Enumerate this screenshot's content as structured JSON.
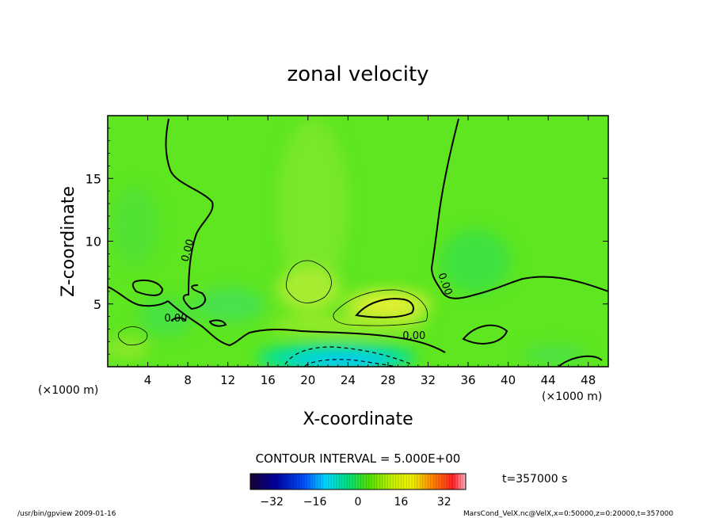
{
  "chart_data": {
    "type": "heatmap",
    "title": "zonal velocity",
    "xlabel": "X-coordinate",
    "ylabel": "Z-coordinate",
    "x_unit": "(×1000 m)",
    "x_ticks": [
      4,
      8,
      12,
      16,
      20,
      24,
      28,
      32,
      36,
      40,
      44,
      48
    ],
    "y_ticks": [
      5,
      10,
      15
    ],
    "xlim": [
      0,
      50
    ],
    "ylim": [
      0,
      20
    ],
    "contour_interval_text": "CONTOUR INTERVAL = 5.000E+00",
    "contour_labels": [
      {
        "text": "0.00",
        "x": 8.3,
        "y": 9.2
      },
      {
        "text": "0.00",
        "x": 33.4,
        "y": 6.5
      },
      {
        "text": "0.00",
        "x": 30.6,
        "y": 2.2
      },
      {
        "text": "0.00",
        "x": 6.8,
        "y": 3.6
      }
    ],
    "features": [
      {
        "name": "westerly max",
        "x": 27.5,
        "z": 4.7,
        "value": 10
      },
      {
        "name": "easterly min",
        "x": 22,
        "z": 0.5,
        "value": -12
      }
    ],
    "colorbar": {
      "ticks": [
        -32,
        -16,
        0,
        16,
        32
      ],
      "range": [
        -40,
        40
      ]
    },
    "time_label": "t=357000 s"
  },
  "footer": {
    "left": "/usr/bin/gpview   2009-01-16",
    "right": "MarsCond_VelX.nc@VelX,x=0:50000,z=0:20000,t=357000"
  }
}
